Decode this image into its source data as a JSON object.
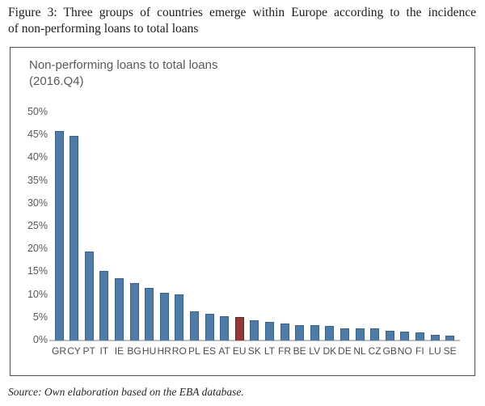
{
  "figure": {
    "caption_line1": "Figure 3: Three groups of countries emerge within Europe according to the incidence",
    "caption_line2": "of non-performing loans to total loans",
    "source": "Source: Own elaboration based on the EBA database."
  },
  "chart": {
    "title_line1": "Non-performing loans to total loans",
    "title_line2": "(2016.Q4)"
  },
  "colors": {
    "bar_blue_fill": "#4d7ca8",
    "bar_blue_border": "#39618c",
    "bar_red_fill": "#953735",
    "bar_red_border": "#6e2422",
    "axis_text": "#595959",
    "axis_line": "#bfbfbf",
    "frame_border": "#4f4f51"
  },
  "chart_data": {
    "type": "bar",
    "title": "Non-performing loans to total loans (2016.Q4)",
    "categories": [
      "GR",
      "CY",
      "PT",
      "IT",
      "IE",
      "BG",
      "HU",
      "HR",
      "RO",
      "PL",
      "ES",
      "AT",
      "EU",
      "SK",
      "LT",
      "FR",
      "BE",
      "LV",
      "DK",
      "DE",
      "NL",
      "CZ",
      "GB",
      "NO",
      "FI",
      "LU",
      "SE"
    ],
    "values": [
      46.0,
      44.8,
      19.5,
      15.3,
      13.6,
      12.6,
      11.5,
      10.4,
      10.1,
      6.3,
      5.8,
      5.4,
      5.1,
      4.4,
      4.0,
      3.8,
      3.4,
      3.4,
      3.2,
      2.7,
      2.6,
      2.6,
      2.1,
      2.0,
      1.8,
      1.3,
      1.1
    ],
    "highlight_category": "EU",
    "xlabel": "",
    "ylabel": "",
    "yticks": [
      0,
      5,
      10,
      15,
      20,
      25,
      30,
      35,
      40,
      45,
      50
    ],
    "ytick_suffix": "%",
    "ylim": [
      0,
      50
    ],
    "grid": false,
    "legend": false
  }
}
